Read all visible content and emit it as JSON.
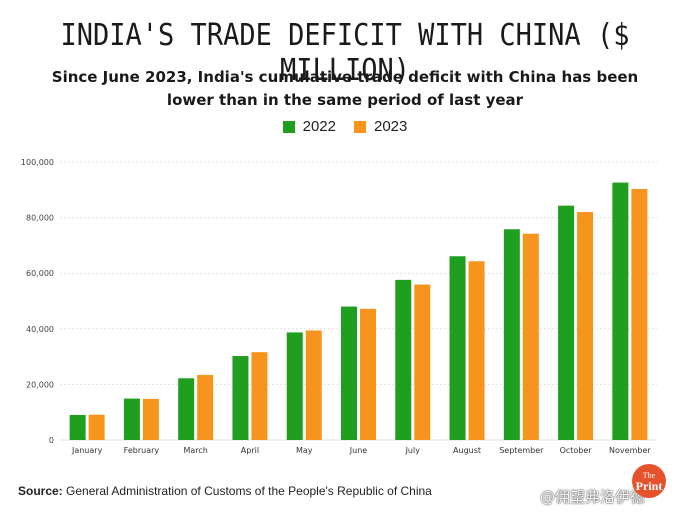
{
  "header": {
    "title": "INDIA'S TRADE DEFICIT WITH CHINA ($ MILLION)",
    "subtitle": "Since June 2023, India's cumulative trade deficit with China has been lower than in the same period of last year"
  },
  "footer": {
    "source_label": "Source:",
    "source_text": "General Administration of Customs of the People's Republic of China",
    "logo_top": "The",
    "logo_bottom": "Print",
    "watermark": "@佣望弗洛伊德"
  },
  "colors": {
    "series_2022": "#1f9e1f",
    "series_2023": "#f7941d",
    "grid": "#e2e2e2"
  },
  "chart_data": {
    "type": "bar",
    "title": "INDIA'S TRADE DEFICIT WITH CHINA ($ MILLION)",
    "categories": [
      "January",
      "February",
      "March",
      "April",
      "May",
      "June",
      "July",
      "August",
      "September",
      "October",
      "November"
    ],
    "series": [
      {
        "name": "2022",
        "values": [
          9000,
          14900,
          22200,
          30200,
          38700,
          48000,
          57600,
          66100,
          75800,
          84300,
          92600
        ]
      },
      {
        "name": "2023",
        "values": [
          9100,
          14800,
          23400,
          31600,
          39400,
          47200,
          55900,
          64300,
          74200,
          82000,
          90300
        ]
      }
    ],
    "ylim": [
      0,
      100000
    ],
    "yticks": [
      0,
      20000,
      40000,
      60000,
      80000,
      100000
    ],
    "ytick_labels": [
      "0",
      "20,000",
      "40,000",
      "60,000",
      "80,000",
      "100,000"
    ],
    "grid": true,
    "legend": "top-center"
  }
}
